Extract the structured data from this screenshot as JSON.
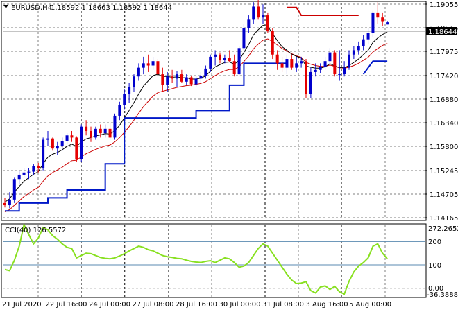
{
  "header": {
    "symbol_timeframe": "EURUSD,H4",
    "ohlc": "1.18592 1.18663 1.18592 1.18644"
  },
  "price_axis": {
    "ticks": [
      "1.19055",
      "1.18515",
      "1.17975",
      "1.17420",
      "1.16880",
      "1.16340",
      "1.15800",
      "1.15245",
      "1.14705",
      "1.14165"
    ],
    "current_price": "1.18644"
  },
  "time_axis": {
    "labels": [
      "21 Jul 2020",
      "22 Jul 16:00",
      "24 Jul 00:00",
      "27 Jul 08:00",
      "28 Jul 16:00",
      "30 Jul 00:00",
      "31 Jul 08:00",
      "3 Aug 16:00",
      "5 Aug 00:00"
    ]
  },
  "indicator": {
    "label": "CCI(40) 126.5572",
    "scale_top": "272.2652",
    "level_200": "200",
    "level_100": "100",
    "level_0": "0.00",
    "scale_bottom": "-36.3888"
  },
  "colors": {
    "bull_candle": "#0000cc",
    "bear_candle": "#e60000",
    "grid": "#7f7f7f",
    "red_line": "#cc0000",
    "blue_step": "#0018c8",
    "cci_line": "#88e020",
    "level_line": "#5a8ab0",
    "price_tag_bg": "#000000"
  },
  "chart_data": {
    "type": "candlestick",
    "candles": [
      [
        1.145,
        1.1462,
        1.144,
        1.1445
      ],
      [
        1.1445,
        1.1475,
        1.1438,
        1.1458
      ],
      [
        1.1458,
        1.1508,
        1.145,
        1.1505
      ],
      [
        1.1505,
        1.1525,
        1.1492,
        1.1515
      ],
      [
        1.1515,
        1.153,
        1.1508,
        1.152
      ],
      [
        1.152,
        1.153,
        1.1505,
        1.1522
      ],
      [
        1.1522,
        1.154,
        1.1515,
        1.1535
      ],
      [
        1.1535,
        1.1542,
        1.152,
        1.153
      ],
      [
        1.153,
        1.16,
        1.1525,
        1.1595
      ],
      [
        1.1595,
        1.1615,
        1.158,
        1.1598
      ],
      [
        1.1598,
        1.16,
        1.157,
        1.1575
      ],
      [
        1.1575,
        1.159,
        1.156,
        1.158
      ],
      [
        1.158,
        1.16,
        1.157,
        1.1592
      ],
      [
        1.1592,
        1.161,
        1.1585,
        1.1605
      ],
      [
        1.1605,
        1.1615,
        1.159,
        1.16
      ],
      [
        1.16,
        1.1603,
        1.1545,
        1.155
      ],
      [
        1.155,
        1.163,
        1.1545,
        1.1625
      ],
      [
        1.1625,
        1.164,
        1.1605,
        1.1615
      ],
      [
        1.1615,
        1.1625,
        1.159,
        1.16
      ],
      [
        1.16,
        1.1625,
        1.1595,
        1.162
      ],
      [
        1.162,
        1.163,
        1.16,
        1.161
      ],
      [
        1.161,
        1.163,
        1.16,
        1.162
      ],
      [
        1.162,
        1.1635,
        1.1595,
        1.16
      ],
      [
        1.16,
        1.1655,
        1.1595,
        1.165
      ],
      [
        1.165,
        1.1682,
        1.164,
        1.1675
      ],
      [
        1.1675,
        1.171,
        1.1665,
        1.17
      ],
      [
        1.17,
        1.1725,
        1.168,
        1.1715
      ],
      [
        1.1715,
        1.1745,
        1.1705,
        1.174
      ],
      [
        1.174,
        1.177,
        1.173,
        1.176
      ],
      [
        1.176,
        1.1785,
        1.1745,
        1.177
      ],
      [
        1.177,
        1.179,
        1.175,
        1.1765
      ],
      [
        1.1765,
        1.1785,
        1.1755,
        1.1775
      ],
      [
        1.1775,
        1.178,
        1.174,
        1.1745
      ],
      [
        1.1745,
        1.176,
        1.1705,
        1.172
      ],
      [
        1.172,
        1.175,
        1.1705,
        1.174
      ],
      [
        1.174,
        1.1755,
        1.1725,
        1.1735
      ],
      [
        1.1735,
        1.1752,
        1.1715,
        1.1745
      ],
      [
        1.1745,
        1.1755,
        1.1725,
        1.1728
      ],
      [
        1.1728,
        1.1745,
        1.172,
        1.1738
      ],
      [
        1.1738,
        1.1742,
        1.1718,
        1.1722
      ],
      [
        1.1722,
        1.174,
        1.1715,
        1.1735
      ],
      [
        1.1735,
        1.175,
        1.1725,
        1.1742
      ],
      [
        1.1742,
        1.1765,
        1.1735,
        1.1758
      ],
      [
        1.1758,
        1.179,
        1.175,
        1.1785
      ],
      [
        1.1785,
        1.18,
        1.1765,
        1.179
      ],
      [
        1.179,
        1.1795,
        1.177,
        1.1778
      ],
      [
        1.1778,
        1.179,
        1.177,
        1.1783
      ],
      [
        1.1783,
        1.18,
        1.1772,
        1.1775
      ],
      [
        1.1775,
        1.179,
        1.174,
        1.1745
      ],
      [
        1.1745,
        1.181,
        1.174,
        1.1805
      ],
      [
        1.1805,
        1.186,
        1.18,
        1.185
      ],
      [
        1.185,
        1.188,
        1.184,
        1.187
      ],
      [
        1.187,
        1.191,
        1.186,
        1.19
      ],
      [
        1.19,
        1.1915,
        1.187,
        1.1875
      ],
      [
        1.1875,
        1.1905,
        1.186,
        1.188
      ],
      [
        1.188,
        1.1885,
        1.184,
        1.1845
      ],
      [
        1.1845,
        1.185,
        1.178,
        1.179
      ],
      [
        1.179,
        1.18,
        1.1755,
        1.177
      ],
      [
        1.177,
        1.1785,
        1.175,
        1.176
      ],
      [
        1.176,
        1.179,
        1.1745,
        1.178
      ],
      [
        1.178,
        1.179,
        1.1755,
        1.176
      ],
      [
        1.176,
        1.1785,
        1.175,
        1.177
      ],
      [
        1.177,
        1.1785,
        1.176,
        1.1775
      ],
      [
        1.1775,
        1.178,
        1.169,
        1.17
      ],
      [
        1.17,
        1.176,
        1.169,
        1.175
      ],
      [
        1.175,
        1.177,
        1.174,
        1.1755
      ],
      [
        1.1755,
        1.177,
        1.1748,
        1.1762
      ],
      [
        1.1762,
        1.1785,
        1.1755,
        1.1775
      ],
      [
        1.1775,
        1.1805,
        1.1765,
        1.1795
      ],
      [
        1.1795,
        1.18,
        1.174,
        1.1745
      ],
      [
        1.1745,
        1.18,
        1.173,
        1.1745
      ],
      [
        1.1745,
        1.1775,
        1.174,
        1.176
      ],
      [
        1.176,
        1.18,
        1.1755,
        1.179
      ],
      [
        1.179,
        1.181,
        1.178,
        1.18
      ],
      [
        1.18,
        1.182,
        1.179,
        1.181
      ],
      [
        1.181,
        1.1835,
        1.18,
        1.1825
      ],
      [
        1.1825,
        1.185,
        1.1815,
        1.184
      ],
      [
        1.184,
        1.189,
        1.183,
        1.1885
      ],
      [
        1.1885,
        1.191,
        1.186,
        1.1875
      ],
      [
        1.1875,
        1.1885,
        1.1855,
        1.1865
      ],
      [
        1.1859,
        1.1866,
        1.1859,
        1.1864
      ]
    ],
    "sma_fast": [
      1.1452,
      1.146,
      1.1475,
      1.1488,
      1.15,
      1.1508,
      1.1516,
      1.1522,
      1.154,
      1.1555,
      1.1562,
      1.1566,
      1.1572,
      1.158,
      1.1585,
      1.158,
      1.159,
      1.1597,
      1.16,
      1.1604,
      1.1606,
      1.1609,
      1.1608,
      1.1616,
      1.1628,
      1.1645,
      1.1662,
      1.168,
      1.17,
      1.1718,
      1.173,
      1.1742,
      1.1745,
      1.174,
      1.174,
      1.1738,
      1.1739,
      1.1737,
      1.1737,
      1.1734,
      1.1734,
      1.1736,
      1.1741,
      1.1752,
      1.1762,
      1.1767,
      1.1772,
      1.1773,
      1.1768,
      1.1777,
      1.1795,
      1.1813,
      1.1835,
      1.1847,
      1.1857,
      1.1855,
      1.1838,
      1.1822,
      1.1808,
      1.18,
      1.1791,
      1.1786,
      1.1782,
      1.1764,
      1.1761,
      1.1759,
      1.1759,
      1.1762,
      1.1769,
      1.1764,
      1.176,
      1.176,
      1.1765,
      1.1772,
      1.178,
      1.179,
      1.18,
      1.1818,
      1.1828,
      1.1836,
      1.1842
    ],
    "sma_slow": [
      1.143,
      1.1435,
      1.1445,
      1.1455,
      1.1465,
      1.1472,
      1.148,
      1.1486,
      1.15,
      1.1512,
      1.152,
      1.1526,
      1.1532,
      1.154,
      1.1547,
      1.1548,
      1.1556,
      1.1563,
      1.1568,
      1.1573,
      1.1577,
      1.1581,
      1.1583,
      1.159,
      1.16,
      1.1612,
      1.1625,
      1.164,
      1.1656,
      1.1671,
      1.1683,
      1.1695,
      1.1703,
      1.1706,
      1.1709,
      1.1712,
      1.1715,
      1.1717,
      1.1719,
      1.172,
      1.1722,
      1.1724,
      1.1728,
      1.1735,
      1.1742,
      1.1748,
      1.1753,
      1.1756,
      1.1756,
      1.1762,
      1.1774,
      1.1787,
      1.1803,
      1.1814,
      1.1823,
      1.1826,
      1.182,
      1.1812,
      1.1804,
      1.1798,
      1.1792,
      1.1787,
      1.1784,
      1.1772,
      1.1768,
      1.1765,
      1.1763,
      1.1763,
      1.1766,
      1.1763,
      1.176,
      1.1759,
      1.1761,
      1.1765,
      1.177,
      1.1777,
      1.1784,
      1.1796,
      1.1804,
      1.1811,
      1.1816
    ],
    "support_steps": [
      [
        0,
        1.1432
      ],
      [
        3,
        1.1432
      ],
      [
        3,
        1.145
      ],
      [
        9,
        1.145
      ],
      [
        9,
        1.1462
      ],
      [
        13,
        1.1462
      ],
      [
        13,
        1.148
      ],
      [
        21,
        1.148
      ],
      [
        21,
        1.154
      ],
      [
        25,
        1.154
      ],
      [
        25,
        1.1645
      ],
      [
        40,
        1.1645
      ],
      [
        40,
        1.1662
      ],
      [
        47,
        1.1662
      ],
      [
        47,
        1.172
      ],
      [
        50,
        1.172
      ],
      [
        50,
        1.177
      ],
      [
        59,
        1.177
      ]
    ],
    "support_steps_2": [
      [
        75,
        1.1745
      ],
      [
        77,
        1.1775
      ],
      [
        80,
        1.1775
      ]
    ],
    "resistance_steps": [
      [
        59,
        1.1898
      ],
      [
        61,
        1.1898
      ],
      [
        62,
        1.188
      ],
      [
        74,
        1.188
      ]
    ],
    "cci": [
      80,
      75,
      120,
      180,
      272,
      230,
      190,
      215,
      260,
      250,
      225,
      210,
      190,
      175,
      170,
      130,
      140,
      150,
      148,
      140,
      132,
      128,
      126,
      130,
      138,
      148,
      160,
      170,
      180,
      175,
      165,
      160,
      150,
      140,
      135,
      132,
      128,
      126,
      120,
      115,
      112,
      110,
      115,
      118,
      110,
      120,
      130,
      126,
      110,
      90,
      95,
      110,
      140,
      170,
      190,
      180,
      150,
      120,
      90,
      60,
      35,
      20,
      22,
      28,
      -10,
      -20,
      5,
      10,
      -5,
      8,
      -15,
      -25,
      30,
      70,
      95,
      110,
      130,
      180,
      190,
      150,
      126
    ],
    "price_ylim": [
      1.14165,
      1.19055
    ],
    "cci_ylim": [
      -36.3888,
      272.2652
    ]
  }
}
